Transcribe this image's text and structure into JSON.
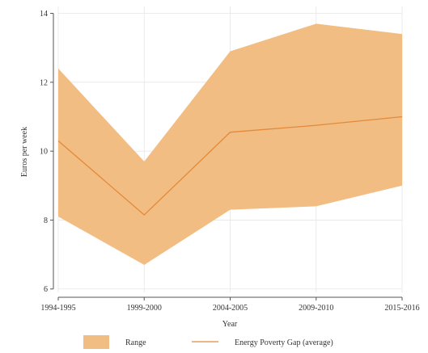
{
  "chart_data": {
    "type": "area",
    "title": "",
    "xlabel": "Year",
    "ylabel": "Euros per week",
    "categories": [
      "1994-1995",
      "1999-2000",
      "2004-2005",
      "2009-2010",
      "2015-2016"
    ],
    "ylim": [
      5.9,
      14.2
    ],
    "yticks": [
      6,
      8,
      10,
      12,
      14
    ],
    "grid": true,
    "series": [
      {
        "name": "Range",
        "kind": "band",
        "low": [
          8.1,
          6.7,
          8.3,
          8.4,
          9.0
        ],
        "high": [
          12.4,
          9.7,
          12.9,
          13.7,
          13.4
        ]
      },
      {
        "name": "Energy Poverty Gap (average)",
        "kind": "line",
        "values": [
          10.3,
          8.15,
          10.55,
          10.75,
          11.0
        ]
      }
    ],
    "legend": {
      "position": "bottom",
      "items": [
        "Range",
        "Energy Poverty Gap (average)"
      ]
    },
    "colors": {
      "band": "#f2bd82",
      "line": "#e28a3a",
      "grid": "#e6e6e6",
      "axis": "#555555"
    }
  }
}
